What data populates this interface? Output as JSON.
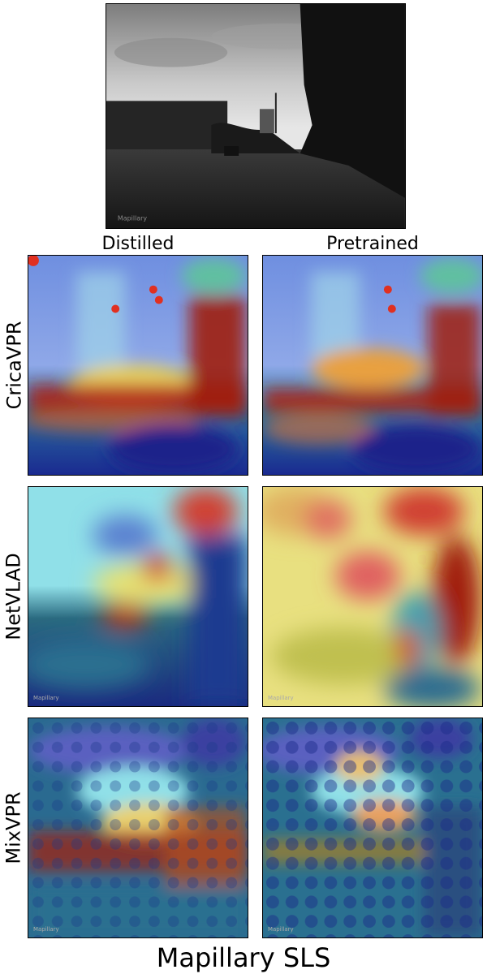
{
  "figure": {
    "column_headers": [
      "Distilled",
      "Pretrained"
    ],
    "row_labels": [
      "CricaVPR",
      "NetVLAD",
      "MixVPR"
    ],
    "dataset_title": "Mapillary SLS",
    "watermark": "Mapillary"
  },
  "colors": {
    "heat_low": "#1e2a9a",
    "heat_mid": "#5fd6c8",
    "heat_high": "#c81c10"
  }
}
